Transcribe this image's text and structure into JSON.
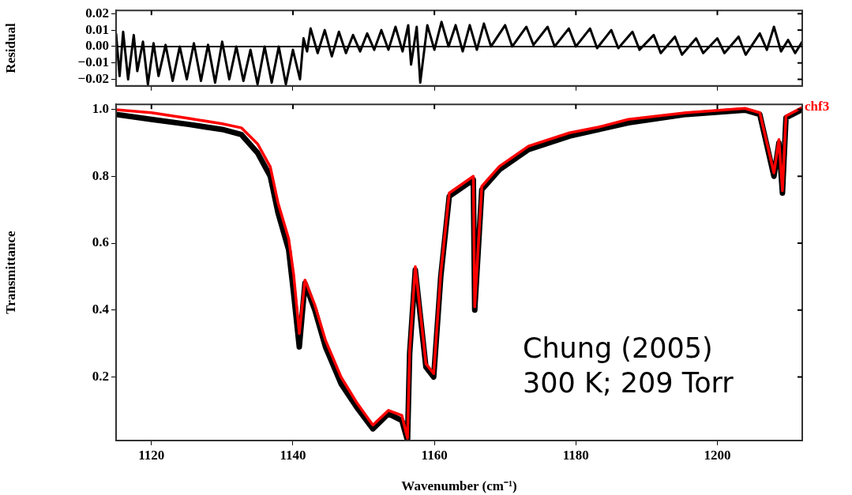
{
  "chart_data": [
    {
      "type": "line",
      "ylabel": "Residual",
      "xlim": [
        1115,
        1212
      ],
      "xticks": [
        1120,
        1140,
        1160,
        1180,
        1200
      ],
      "ylim": [
        -0.024,
        0.022
      ],
      "yticks": [
        {
          "value": 0.02,
          "label": "0.02"
        },
        {
          "value": 0.01,
          "label": "0.01"
        },
        {
          "value": 0,
          "label": "0.00"
        },
        {
          "value": -0.01,
          "label": "−0.01"
        },
        {
          "value": -0.02,
          "label": "−0.02"
        }
      ],
      "tick_labels": "y",
      "legend": false,
      "ref_lines": [
        {
          "axis": "y",
          "value": 0,
          "color": "#000000"
        }
      ],
      "series": [
        {
          "color": "#000000",
          "x": [
            1115,
            1115.5,
            1116,
            1116.7,
            1117.5,
            1118,
            1118.8,
            1119.5,
            1120.3,
            1121,
            1122,
            1123,
            1124,
            1125,
            1126,
            1127,
            1128,
            1129,
            1130,
            1131,
            1132,
            1133,
            1134,
            1135,
            1136,
            1137,
            1138,
            1139,
            1140,
            1141,
            1141.5,
            1142,
            1142.5,
            1143.5,
            1144.5,
            1145.5,
            1146.5,
            1147.5,
            1148.5,
            1149.5,
            1150.5,
            1151.5,
            1152.5,
            1153.5,
            1154.5,
            1155.5,
            1156.3,
            1156.7,
            1157.5,
            1158,
            1159,
            1160,
            1161,
            1162,
            1163,
            1164,
            1165,
            1166,
            1167,
            1168,
            1170,
            1171,
            1173,
            1174,
            1176,
            1177,
            1179,
            1180,
            1182,
            1183,
            1185,
            1186,
            1188,
            1189,
            1191,
            1192,
            1194,
            1195,
            1197,
            1198,
            1200,
            1201,
            1203,
            1204,
            1206,
            1207,
            1208,
            1209,
            1210,
            1211,
            1212
          ],
          "values": [
            0.008,
            -0.018,
            0.009,
            -0.02,
            0.007,
            -0.015,
            0.003,
            -0.023,
            0.002,
            -0.018,
            0.001,
            -0.021,
            0,
            -0.02,
            0.002,
            -0.021,
            0.001,
            -0.022,
            0.003,
            -0.02,
            0,
            -0.021,
            -0.002,
            -0.023,
            0,
            -0.022,
            0,
            -0.023,
            -0.002,
            -0.02,
            0.005,
            -0.003,
            0.011,
            -0.004,
            0.01,
            -0.006,
            0.009,
            -0.004,
            0.007,
            -0.003,
            0.008,
            -0.002,
            0.01,
            -0.002,
            0.012,
            -0.003,
            0.013,
            -0.011,
            0.012,
            -0.022,
            0.013,
            -0.002,
            0.015,
            0,
            0.013,
            -0.003,
            0.013,
            -0.002,
            0.014,
            0,
            0.013,
            0,
            0.012,
            0.001,
            0.012,
            0,
            0.011,
            0,
            0.011,
            -0.001,
            0.01,
            -0.001,
            0.009,
            -0.002,
            0.007,
            -0.004,
            0.006,
            -0.005,
            0.005,
            -0.004,
            0.005,
            -0.004,
            0.006,
            -0.005,
            0.008,
            -0.002,
            0.012,
            -0.003,
            0.004,
            -0.004,
            0.003
          ]
        }
      ]
    },
    {
      "type": "line",
      "xlabel": "Wavenumber (cm⁻¹)",
      "ylabel": "Transmittance",
      "xlim": [
        1115,
        1212
      ],
      "xticks": [
        1120,
        1140,
        1160,
        1180,
        1200
      ],
      "ylim": [
        0.01,
        1.015
      ],
      "yticks": [
        0.2,
        0.4,
        0.6,
        0.8,
        {
          "value": 1,
          "label": "1.0"
        }
      ],
      "legend": false,
      "annotations": [
        "Chung (2005)",
        "300 K; 209 Torr"
      ],
      "series": [
        {
          "color": "#000000",
          "x": [
            1115,
            1120,
            1125.3,
            1130,
            1132.7,
            1135,
            1136.8,
            1137.9,
            1139.4,
            1140.1,
            1140.9,
            1141.7,
            1143.1,
            1144.6,
            1146.8,
            1149,
            1151.3,
            1153.5,
            1155.4,
            1156.2,
            1156.5,
            1157.3,
            1158.8,
            1159.9,
            1160.9,
            1162.1,
            1165.5,
            1165.7,
            1166.7,
            1169.2,
            1173.3,
            1179.1,
            1183.2,
            1187.4,
            1195.6,
            1203.9,
            1206,
            1208,
            1208.7,
            1209.2,
            1209.7,
            1212
          ],
          "values": [
            0.985,
            0.97,
            0.955,
            0.94,
            0.925,
            0.87,
            0.8,
            0.69,
            0.58,
            0.45,
            0.29,
            0.48,
            0.4,
            0.29,
            0.18,
            0.11,
            0.045,
            0.09,
            0.07,
            0.01,
            0.27,
            0.52,
            0.23,
            0.2,
            0.5,
            0.74,
            0.79,
            0.4,
            0.76,
            0.82,
            0.88,
            0.92,
            0.94,
            0.96,
            0.985,
            0.998,
            0.985,
            0.8,
            0.9,
            0.75,
            0.975,
            1.0
          ]
        },
        {
          "name": "chf3",
          "color": "#ff0000",
          "x": [
            1115,
            1120,
            1125.3,
            1130,
            1132.7,
            1135,
            1136.8,
            1137.9,
            1139.4,
            1140.1,
            1140.9,
            1141.7,
            1143.1,
            1144.6,
            1146.8,
            1149,
            1151.3,
            1153.5,
            1155.4,
            1156.2,
            1156.5,
            1157.3,
            1158.8,
            1159.9,
            1160.9,
            1162.1,
            1165.5,
            1165.7,
            1166.7,
            1169.2,
            1173.3,
            1179.1,
            1183.2,
            1187.4,
            1195.6,
            1203.9,
            1206,
            1208,
            1208.7,
            1209.2,
            1209.7,
            1212
          ],
          "values": [
            0.999,
            0.99,
            0.973,
            0.957,
            0.945,
            0.897,
            0.828,
            0.72,
            0.613,
            0.507,
            0.33,
            0.49,
            0.415,
            0.31,
            0.2,
            0.124,
            0.056,
            0.1,
            0.085,
            0.017,
            0.278,
            0.53,
            0.24,
            0.21,
            0.51,
            0.75,
            0.8,
            0.41,
            0.77,
            0.83,
            0.89,
            0.93,
            0.947,
            0.97,
            0.99,
            1.003,
            0.99,
            0.81,
            0.91,
            0.757,
            0.98,
            1.006
          ]
        }
      ]
    }
  ]
}
